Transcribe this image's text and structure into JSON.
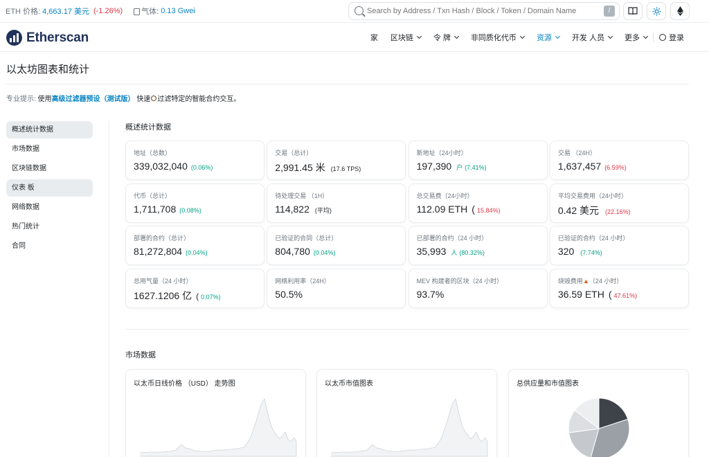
{
  "topbar": {
    "eth_price_label": "ETH 价格:",
    "eth_price_value": "4,663.17 美元",
    "eth_price_change": "(-1.26%)",
    "gas_label": "气体:",
    "gas_value": "0.13 Gwei",
    "search_placeholder": "Search by Address / Txn Hash / Block / Token / Domain Name",
    "search_shortcut": "/"
  },
  "brand": {
    "name": "Etherscan"
  },
  "nav": {
    "home": "家",
    "blockchain": "区块链",
    "tokens": "令 牌",
    "nfts": "非同质化代币",
    "resources": "资源",
    "developers": "开发 人员",
    "more": "更多",
    "login": "登录"
  },
  "page": {
    "title": "以太坊图表和统计",
    "protip_label": "专业提示:",
    "protip_pre": "使用",
    "protip_link": "高级过滤器预设（测试版）",
    "protip_mid": "快速",
    "protip_post": "过滤特定的智能合约交互。"
  },
  "sidebar": {
    "items": [
      "概述统计数据",
      "市场数据",
      "区块链数据",
      "仪表 板",
      "网络数据",
      "热门统计",
      "合同"
    ]
  },
  "overview": {
    "title": "概述统计数据",
    "cards": [
      {
        "label": "地址（总数）",
        "value": "339,032,040",
        "change": "(0.06%)"
      },
      {
        "label": "交易（总计）",
        "value": "2,991.45 米",
        "sub": "(17.6 TPS)"
      },
      {
        "label": "新地址（24小时）",
        "value": "197,390",
        "unit": "户",
        "change": "(7.41%)"
      },
      {
        "label": "交易 （24H）",
        "value": "1,637,457",
        "change": "(6.59%)"
      },
      {
        "label": "代币（总计）",
        "value": "1,711,708",
        "change": "(0.08%)"
      },
      {
        "label": "待处理交易 （1H）",
        "value": "114,822",
        "sub": "(平均)"
      },
      {
        "label": "总交易费（24小时）",
        "value": "112.09 ETH",
        "change": "15.84%)"
      },
      {
        "label": "平均交易费用（24小时）",
        "value": "0.42 美元",
        "change": "(22.16%)"
      },
      {
        "label": "部署的合约（总计）",
        "value": "81,272,804",
        "change": "(0.04%)"
      },
      {
        "label": "已验证的合同（总计）",
        "value": "804,780",
        "change": "(0.04%)"
      },
      {
        "label": "已部署的合约（24 小时）",
        "value": "35,993",
        "unit": "人",
        "change": "(80.32%)"
      },
      {
        "label": "已验证的合约（24 小时）",
        "value": "320",
        "change": "(7.74%)"
      },
      {
        "label": "总用气量（24 小时）",
        "value": "1627.1206 亿",
        "change": "0.07%)"
      },
      {
        "label": "网络利用率（24H）",
        "value": "50.5%"
      },
      {
        "label": "MEV 构建者的区块（24 小时）",
        "value": "93.7%"
      },
      {
        "label": "烧毁费用",
        "label2": "（24 小时）",
        "value": "36.59 ETH",
        "change": "47.61%)"
      }
    ]
  },
  "market": {
    "title": "市场数据",
    "charts": [
      "以太币日线价格 （USD） 走势图",
      "以太币市值图表",
      "总供应量和市值图表"
    ]
  },
  "colors": {
    "accent": "#0784c3",
    "positive": "#00a186",
    "negative": "#dc3545",
    "brand": "#21325b"
  }
}
